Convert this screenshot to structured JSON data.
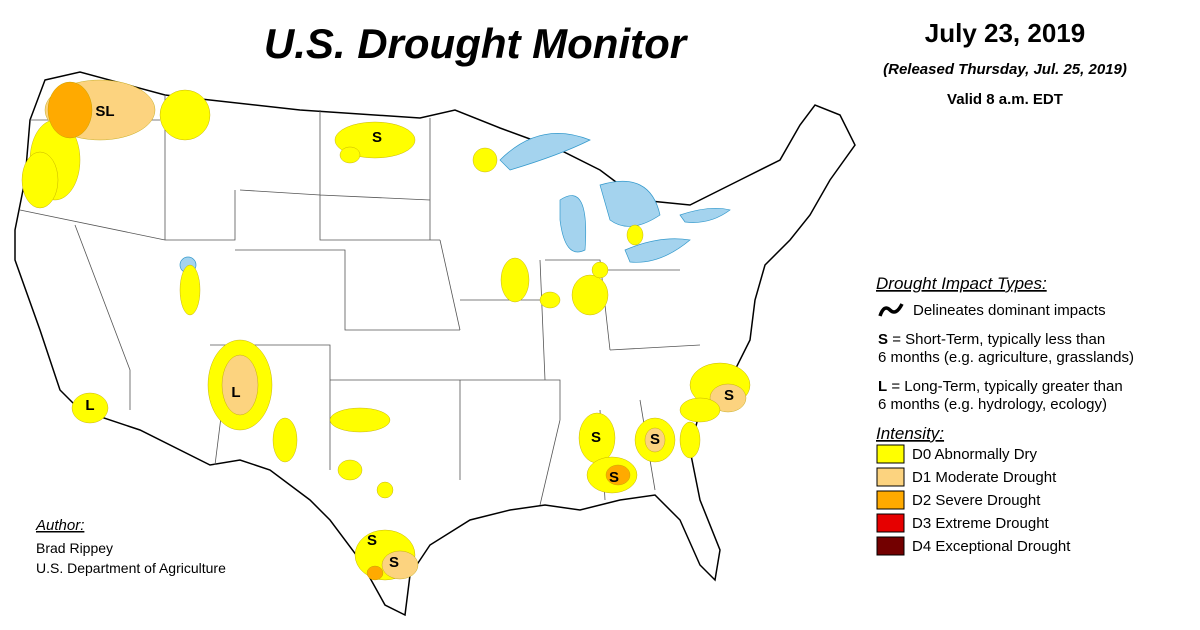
{
  "title": "U.S. Drought Monitor",
  "date": "July 23, 2019",
  "released": "(Released Thursday, Jul. 25, 2019)",
  "valid": "Valid 8 a.m. EDT",
  "impact_types": {
    "heading": "Drought Impact Types:",
    "delineates": "Delineates dominant impacts",
    "short_term": {
      "letter": "S",
      "line1": "= Short-Term, typically less than",
      "line2": "6 months (e.g. agriculture, grasslands)"
    },
    "long_term": {
      "letter": "L",
      "line1": "= Long-Term, typically greater than",
      "line2": "6 months (e.g. hydrology, ecology)"
    }
  },
  "intensity": {
    "heading": "Intensity:",
    "levels": [
      {
        "label": "D0 Abnormally Dry",
        "color": "#ffff00"
      },
      {
        "label": "D1 Moderate Drought",
        "color": "#fcd37f"
      },
      {
        "label": "D2 Severe Drought",
        "color": "#ffaa00"
      },
      {
        "label": "D3 Extreme Drought",
        "color": "#e60000"
      },
      {
        "label": "D4 Exceptional Drought",
        "color": "#730000"
      }
    ]
  },
  "author": {
    "heading": "Author:",
    "name": "Brad Rippey",
    "organization": "U.S. Department of Agriculture"
  },
  "map_labels": [
    "SL",
    "S",
    "L",
    "L",
    "S",
    "S",
    "S",
    "S",
    "S",
    "S"
  ]
}
